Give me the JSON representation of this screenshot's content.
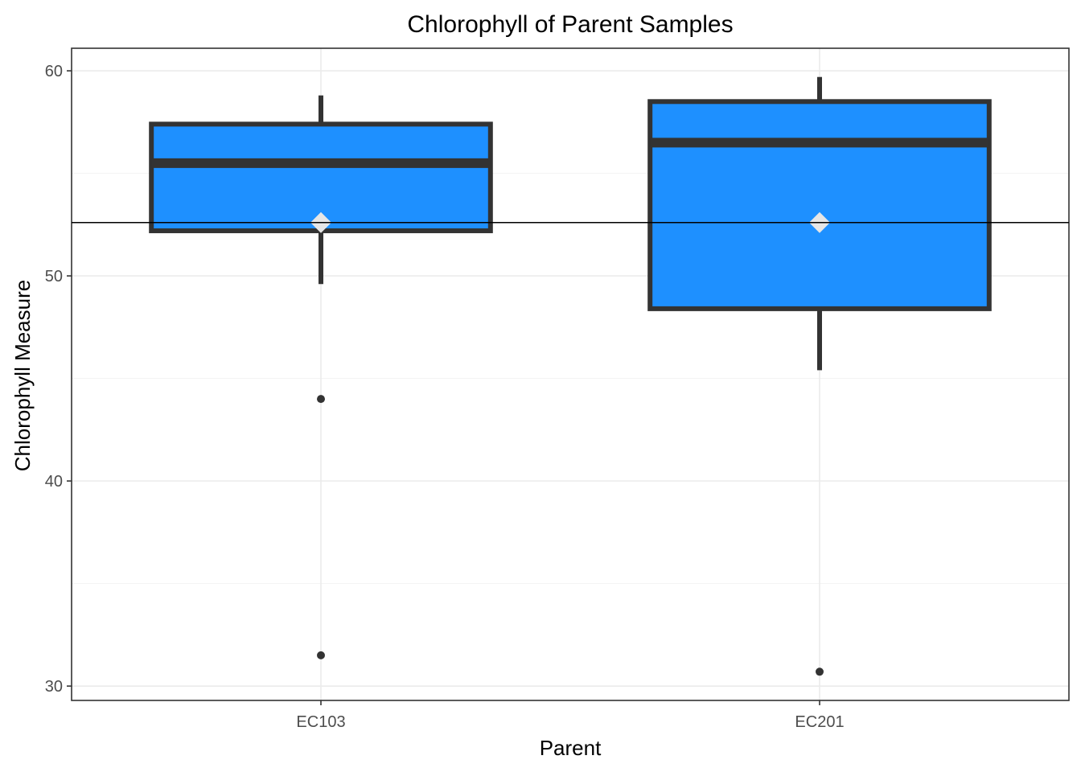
{
  "chart_data": {
    "type": "box",
    "title": "Chlorophyll of Parent Samples",
    "xlabel": "Parent",
    "ylabel": "Chlorophyll Measure",
    "categories": [
      "EC103",
      "EC201"
    ],
    "ylim": [
      29.3,
      61.1
    ],
    "yticks": [
      30,
      40,
      50,
      60
    ],
    "grid": true,
    "box_fill": "#1E90FF",
    "box_stroke": "#333333",
    "mean_marker_color": "#E6E6E6",
    "reference_line": 52.6,
    "boxes": [
      {
        "category": "EC103",
        "whisker_low": 49.6,
        "q1": 52.2,
        "median": 55.5,
        "q3": 57.4,
        "whisker_high": 58.8,
        "mean": 52.6,
        "outliers": [
          44.0,
          31.5
        ]
      },
      {
        "category": "EC201",
        "whisker_low": 45.4,
        "q1": 48.4,
        "median": 56.5,
        "q3": 58.5,
        "whisker_high": 59.7,
        "mean": 52.6,
        "outliers": [
          30.7
        ]
      }
    ]
  }
}
